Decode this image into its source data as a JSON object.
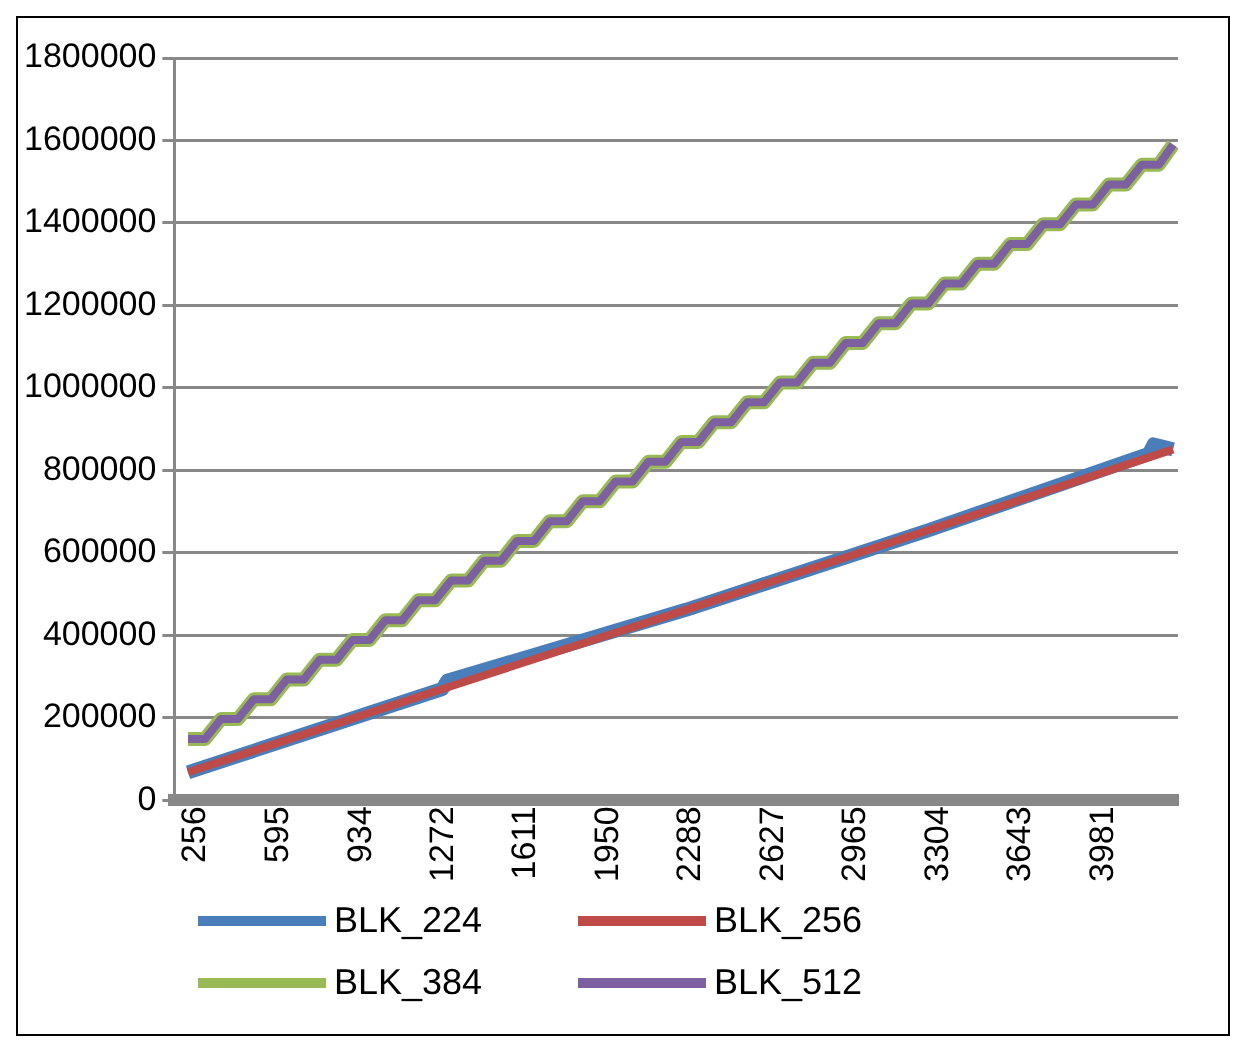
{
  "chart_data": {
    "type": "line",
    "x": [
      256,
      326,
      391,
      461,
      526,
      596,
      661,
      731,
      796,
      866,
      931,
      1001,
      1066,
      1136,
      1201,
      1271,
      1336,
      1406,
      1471,
      1541,
      1606,
      1676,
      1741,
      1811,
      1876,
      1946,
      2011,
      2081,
      2146,
      2216,
      2281,
      2351,
      2416,
      2486,
      2551,
      2621,
      2686,
      2756,
      2821,
      2891,
      2956,
      3026,
      3091,
      3161,
      3226,
      3296,
      3361,
      3431,
      3496,
      3566,
      3631,
      3701,
      3766,
      3836,
      3901,
      3971,
      4036,
      4106,
      4171,
      4241,
      4300
    ],
    "series": [
      {
        "name": "BLK_224",
        "color": "#4a7ebb",
        "x": [
          256,
          1300,
          1320,
          2300,
          3300,
          4200,
          4220,
          4300
        ],
        "values": [
          68000,
          270000,
          290000,
          462000,
          656000,
          840000,
          863000,
          851000
        ]
      },
      {
        "name": "BLK_256",
        "color": "#be4b48",
        "x": [
          256,
          1300,
          2300,
          3300,
          4300
        ],
        "values": [
          68000,
          270000,
          462000,
          656000,
          851000
        ]
      },
      {
        "name": "BLK_384",
        "color": "#98b954",
        "values": [
          149000,
          149000,
          197000,
          197000,
          245000,
          245000,
          293000,
          293000,
          341000,
          341000,
          389000,
          389000,
          437000,
          437000,
          485000,
          485000,
          533000,
          533000,
          581000,
          581000,
          629000,
          629000,
          677000,
          677000,
          725000,
          725000,
          773000,
          773000,
          821000,
          821000,
          869000,
          869000,
          917000,
          917000,
          965000,
          965000,
          1013000,
          1013000,
          1061000,
          1061000,
          1109000,
          1109000,
          1157000,
          1157000,
          1205000,
          1205000,
          1253000,
          1253000,
          1301000,
          1301000,
          1349000,
          1349000,
          1397000,
          1397000,
          1445000,
          1445000,
          1493000,
          1493000,
          1541000,
          1541000,
          1590000
        ]
      },
      {
        "name": "BLK_512",
        "color": "#7d60a0",
        "values": [
          149000,
          149000,
          197000,
          197000,
          245000,
          245000,
          293000,
          293000,
          341000,
          341000,
          389000,
          389000,
          437000,
          437000,
          485000,
          485000,
          533000,
          533000,
          581000,
          581000,
          629000,
          629000,
          677000,
          677000,
          725000,
          725000,
          773000,
          773000,
          821000,
          821000,
          869000,
          869000,
          917000,
          917000,
          965000,
          965000,
          1013000,
          1013000,
          1061000,
          1061000,
          1109000,
          1109000,
          1157000,
          1157000,
          1205000,
          1205000,
          1253000,
          1253000,
          1301000,
          1301000,
          1349000,
          1349000,
          1397000,
          1397000,
          1445000,
          1445000,
          1493000,
          1493000,
          1541000,
          1541000,
          1590000
        ]
      }
    ],
    "xlim": [
      200,
      4320
    ],
    "xticks": [
      256,
      595,
      934,
      1272,
      1611,
      1950,
      2288,
      2627,
      2965,
      3304,
      3643,
      3981
    ],
    "ylim": [
      0,
      1800000
    ],
    "yticks": [
      0,
      200000,
      400000,
      600000,
      800000,
      1000000,
      1200000,
      1400000,
      1600000,
      1800000
    ],
    "grid": "y",
    "legend": "bottom",
    "marker": "none",
    "line_style": "solid"
  }
}
